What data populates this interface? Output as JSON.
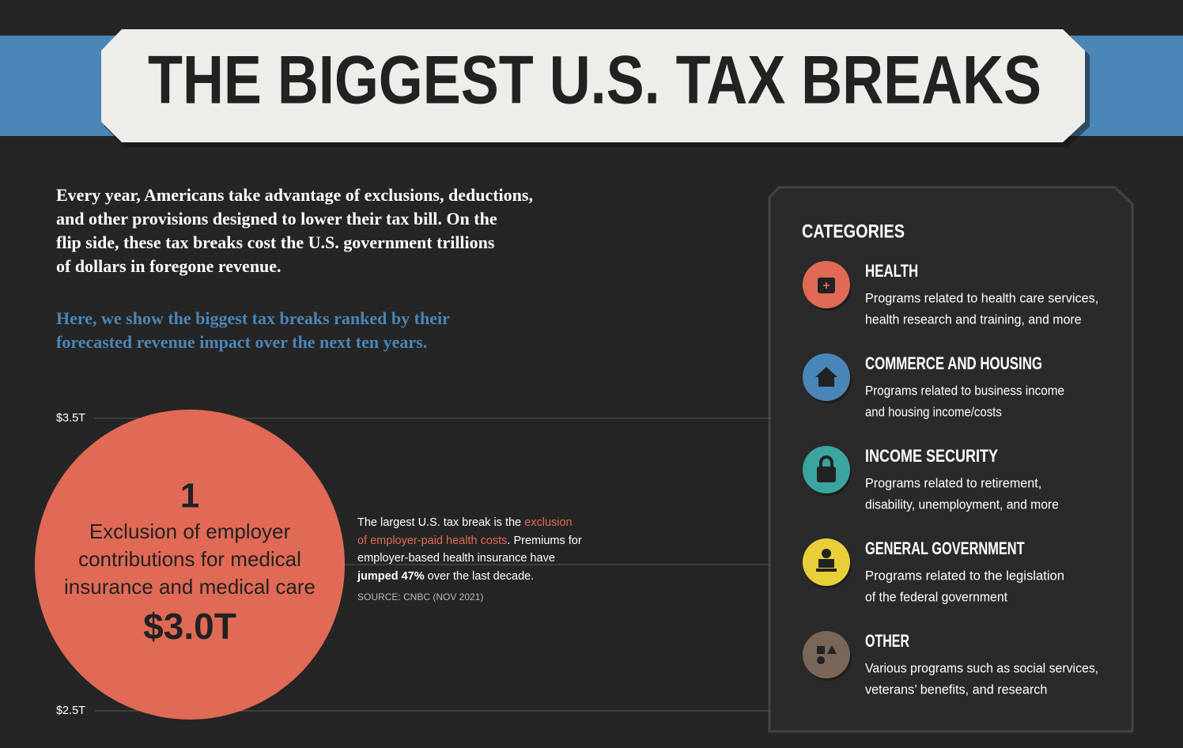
{
  "title": "THE BIGGEST U.S. TAX BREAKS",
  "intro": [
    "Every year, Americans take advantage of exclusions, deductions,",
    "and other provisions designed to lower their tax bill. On the",
    "flip side, these tax breaks cost the U.S. government trillions",
    "of dollars in foregone revenue."
  ],
  "highlight": [
    "Here, we show the biggest tax breaks ranked by their",
    "forecasted revenue impact over the next ten years."
  ],
  "chart_data": {
    "type": "bubble",
    "ylim": [
      2.5,
      3.5
    ],
    "yticks": [
      {
        "value": 2.5,
        "label": "$2.5T"
      },
      {
        "value": 3.5,
        "label": "$3.5T"
      }
    ],
    "bubbles": [
      {
        "rank": 1,
        "label": [
          "Exclusion of employer",
          "contributions for medical",
          "insurance and medical care"
        ],
        "value": 3.0,
        "value_label": "$3.0T",
        "color": "#e06a55"
      }
    ],
    "annotation": {
      "lead": "The largest U.S. tax break is the",
      "highlight": "exclusion of employer-paid health costs",
      "after": ".",
      "text": "Premiums for employer-based health insurance have",
      "bold": "jumped 47%",
      "end": "over the last decade.",
      "source": "SOURCE: CNBC (NOV 2021)"
    }
  },
  "legend": {
    "heading": "CATEGORIES",
    "items": [
      {
        "name": "HEALTH",
        "description": [
          "Programs related to health care services,",
          "health research and training, and more"
        ],
        "color": "#e06a55"
      },
      {
        "name": "COMMERCE AND HOUSING",
        "description": [
          "Programs related to business income",
          "and housing income/costs"
        ],
        "color": "#4a86b8"
      },
      {
        "name": "INCOME SECURITY",
        "description": [
          "Programs related to retirement,",
          "disability, unemployment, and more"
        ],
        "color": "#3aa5a0"
      },
      {
        "name": "GENERAL GOVERNMENT",
        "description": [
          "Programs related to the legislation",
          "of the federal government"
        ],
        "color": "#e8cf3a"
      },
      {
        "name": "OTHER",
        "description": [
          "Various programs such as social services,",
          "veterans’ benefits, and research"
        ],
        "color": "#7a6658"
      }
    ]
  }
}
